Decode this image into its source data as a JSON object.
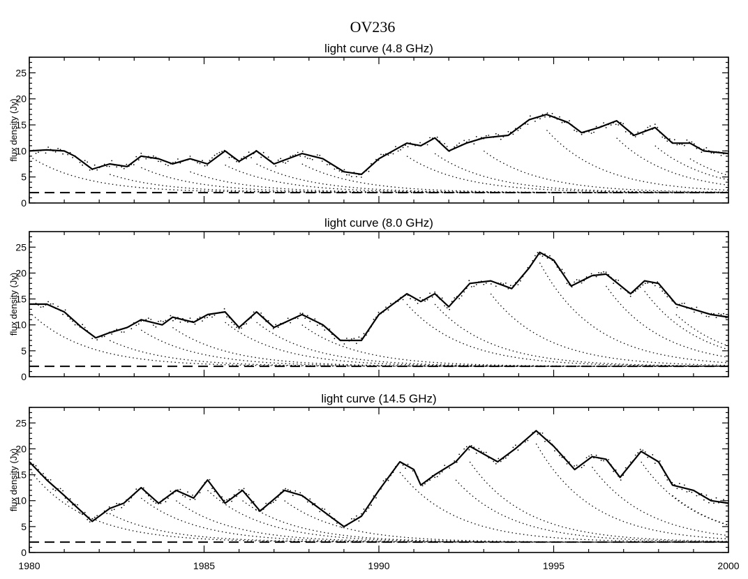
{
  "figure_title": "OV236",
  "chart_data": [
    {
      "type": "line",
      "title": "light curve (4.8 GHz)",
      "ylabel": "flux density (Jy)",
      "xlim": [
        1980,
        2000
      ],
      "ylim": [
        0,
        28
      ],
      "xticks": [
        1980,
        1985,
        1990,
        1995,
        2000
      ],
      "yticks": [
        0,
        5,
        10,
        15,
        20,
        25
      ],
      "baseline": 2,
      "series": [
        {
          "values": [
            [
              1980,
              10
            ],
            [
              1980.5,
              10.2
            ],
            [
              1981,
              10
            ],
            [
              1981.3,
              9
            ],
            [
              1981.8,
              6.5
            ],
            [
              1982.3,
              7.5
            ],
            [
              1982.8,
              7
            ],
            [
              1983.2,
              9
            ],
            [
              1983.7,
              8.5
            ],
            [
              1984.1,
              7.5
            ],
            [
              1984.6,
              8.5
            ],
            [
              1985.1,
              7.5
            ],
            [
              1985.6,
              10
            ],
            [
              1986,
              8
            ],
            [
              1986.5,
              10
            ],
            [
              1987,
              7.5
            ],
            [
              1987.8,
              9.5
            ],
            [
              1988.4,
              8.5
            ],
            [
              1989,
              6
            ],
            [
              1989.5,
              5.5
            ],
            [
              1990,
              8.5
            ],
            [
              1990.8,
              11.5
            ],
            [
              1991.2,
              11
            ],
            [
              1991.6,
              12.5
            ],
            [
              1992,
              10
            ],
            [
              1992.5,
              11.5
            ],
            [
              1993,
              12.5
            ],
            [
              1993.7,
              13
            ],
            [
              1994.3,
              16
            ],
            [
              1994.8,
              17
            ],
            [
              1995.4,
              15.5
            ],
            [
              1995.8,
              13.5
            ],
            [
              1996.3,
              14.5
            ],
            [
              1996.8,
              15.8
            ],
            [
              1997.3,
              13
            ],
            [
              1997.9,
              14.5
            ],
            [
              1998.4,
              11.5
            ],
            [
              1998.9,
              11.5
            ],
            [
              1999.3,
              10
            ],
            [
              2000,
              9.5
            ]
          ]
        }
      ],
      "components": [
        {
          "t0": 1980.0,
          "peak": 9.0
        },
        {
          "t0": 1982.3,
          "peak": 5.5
        },
        {
          "t0": 1983.2,
          "peak": 6.8
        },
        {
          "t0": 1984.6,
          "peak": 6.0
        },
        {
          "t0": 1985.6,
          "peak": 7.3
        },
        {
          "t0": 1986.5,
          "peak": 7.5
        },
        {
          "t0": 1987.8,
          "peak": 7.5
        },
        {
          "t0": 1990.8,
          "peak": 9.0
        },
        {
          "t0": 1991.6,
          "peak": 9.5
        },
        {
          "t0": 1993.0,
          "peak": 10.0
        },
        {
          "t0": 1994.8,
          "peak": 14.0
        },
        {
          "t0": 1996.8,
          "peak": 12.5
        },
        {
          "t0": 1997.9,
          "peak": 11.0
        },
        {
          "t0": 1998.9,
          "peak": 8.5
        }
      ]
    },
    {
      "type": "line",
      "title": "light curve (8.0 GHz)",
      "ylabel": "flux density (Jy)",
      "xlim": [
        1980,
        2000
      ],
      "ylim": [
        0,
        28
      ],
      "xticks": [
        1980,
        1985,
        1990,
        1995,
        2000
      ],
      "yticks": [
        0,
        5,
        10,
        15,
        20,
        25
      ],
      "baseline": 2,
      "series": [
        {
          "values": [
            [
              1980,
              14
            ],
            [
              1980.5,
              14
            ],
            [
              1981,
              12.5
            ],
            [
              1981.5,
              9.5
            ],
            [
              1981.9,
              7.5
            ],
            [
              1982.3,
              8.5
            ],
            [
              1982.8,
              9.5
            ],
            [
              1983.2,
              11
            ],
            [
              1983.8,
              10
            ],
            [
              1984.1,
              11.5
            ],
            [
              1984.7,
              10.5
            ],
            [
              1985.1,
              12
            ],
            [
              1985.6,
              12.5
            ],
            [
              1986,
              9.5
            ],
            [
              1986.5,
              12.5
            ],
            [
              1987,
              9.5
            ],
            [
              1987.8,
              12
            ],
            [
              1988.4,
              10
            ],
            [
              1988.9,
              7
            ],
            [
              1989.5,
              7
            ],
            [
              1990,
              12
            ],
            [
              1990.8,
              16
            ],
            [
              1991.2,
              14.5
            ],
            [
              1991.6,
              16
            ],
            [
              1992,
              13.5
            ],
            [
              1992.6,
              18
            ],
            [
              1993.2,
              18.5
            ],
            [
              1993.8,
              17
            ],
            [
              1994.3,
              21
            ],
            [
              1994.6,
              24
            ],
            [
              1995,
              22.5
            ],
            [
              1995.5,
              17.5
            ],
            [
              1996.1,
              19.5
            ],
            [
              1996.5,
              19.8
            ],
            [
              1997.2,
              16
            ],
            [
              1997.6,
              18.5
            ],
            [
              1998,
              18
            ],
            [
              1998.5,
              14
            ],
            [
              1999,
              13
            ],
            [
              1999.5,
              12
            ],
            [
              2000,
              11.5
            ]
          ]
        }
      ],
      "components": [
        {
          "t0": 1980.0,
          "peak": 12.5
        },
        {
          "t0": 1982.3,
          "peak": 7.0
        },
        {
          "t0": 1983.2,
          "peak": 9.0
        },
        {
          "t0": 1984.1,
          "peak": 9.5
        },
        {
          "t0": 1985.6,
          "peak": 10.5
        },
        {
          "t0": 1986.5,
          "peak": 10.5
        },
        {
          "t0": 1987.8,
          "peak": 10.0
        },
        {
          "t0": 1990.8,
          "peak": 14.0
        },
        {
          "t0": 1991.6,
          "peak": 14.0
        },
        {
          "t0": 1993.2,
          "peak": 16.0
        },
        {
          "t0": 1994.6,
          "peak": 22.0
        },
        {
          "t0": 1996.5,
          "peak": 17.5
        },
        {
          "t0": 1997.6,
          "peak": 16.5
        },
        {
          "t0": 1998.5,
          "peak": 12.0
        }
      ]
    },
    {
      "type": "line",
      "title": "light curve (14.5 GHz)",
      "ylabel": "flux density (Jy)",
      "xlim": [
        1980,
        2000
      ],
      "ylim": [
        0,
        28
      ],
      "xticks": [
        1980,
        1985,
        1990,
        1995,
        2000
      ],
      "yticks": [
        0,
        5,
        10,
        15,
        20,
        25
      ],
      "baseline": 2,
      "series": [
        {
          "values": [
            [
              1980,
              17.5
            ],
            [
              1980.5,
              14
            ],
            [
              1981,
              11
            ],
            [
              1981.4,
              8.5
            ],
            [
              1981.8,
              6
            ],
            [
              1982.3,
              8.5
            ],
            [
              1982.7,
              9.5
            ],
            [
              1983.2,
              12.5
            ],
            [
              1983.7,
              9.5
            ],
            [
              1984.2,
              12
            ],
            [
              1984.7,
              10.5
            ],
            [
              1985.1,
              14
            ],
            [
              1985.6,
              9.5
            ],
            [
              1986.1,
              12
            ],
            [
              1986.6,
              8
            ],
            [
              1987.3,
              12
            ],
            [
              1987.8,
              11
            ],
            [
              1988.3,
              8.5
            ],
            [
              1989,
              5
            ],
            [
              1989.5,
              7
            ],
            [
              1990,
              12
            ],
            [
              1990.6,
              17.5
            ],
            [
              1991,
              16
            ],
            [
              1991.2,
              13
            ],
            [
              1991.6,
              15
            ],
            [
              1992.2,
              17.5
            ],
            [
              1992.6,
              20.5
            ],
            [
              1993,
              19
            ],
            [
              1993.4,
              17.5
            ],
            [
              1993.9,
              20
            ],
            [
              1994.5,
              23.5
            ],
            [
              1995,
              20.5
            ],
            [
              1995.6,
              16
            ],
            [
              1996.1,
              18.5
            ],
            [
              1996.5,
              18
            ],
            [
              1996.9,
              14.5
            ],
            [
              1997.5,
              19.5
            ],
            [
              1998,
              17.5
            ],
            [
              1998.4,
              13
            ],
            [
              1999,
              12
            ],
            [
              1999.5,
              10
            ],
            [
              2000,
              9.5
            ]
          ]
        }
      ],
      "components": [
        {
          "t0": 1980.0,
          "peak": 16.0
        },
        {
          "t0": 1982.3,
          "peak": 7.5
        },
        {
          "t0": 1983.2,
          "peak": 10.5
        },
        {
          "t0": 1984.2,
          "peak": 10.0
        },
        {
          "t0": 1985.1,
          "peak": 12.0
        },
        {
          "t0": 1986.1,
          "peak": 10.0
        },
        {
          "t0": 1987.3,
          "peak": 10.0
        },
        {
          "t0": 1990.6,
          "peak": 15.5
        },
        {
          "t0": 1992.2,
          "peak": 14.0
        },
        {
          "t0": 1992.6,
          "peak": 17.5
        },
        {
          "t0": 1994.5,
          "peak": 21.0
        },
        {
          "t0": 1996.1,
          "peak": 16.5
        },
        {
          "t0": 1997.5,
          "peak": 17.5
        },
        {
          "t0": 1998.4,
          "peak": 11.0
        }
      ]
    }
  ]
}
